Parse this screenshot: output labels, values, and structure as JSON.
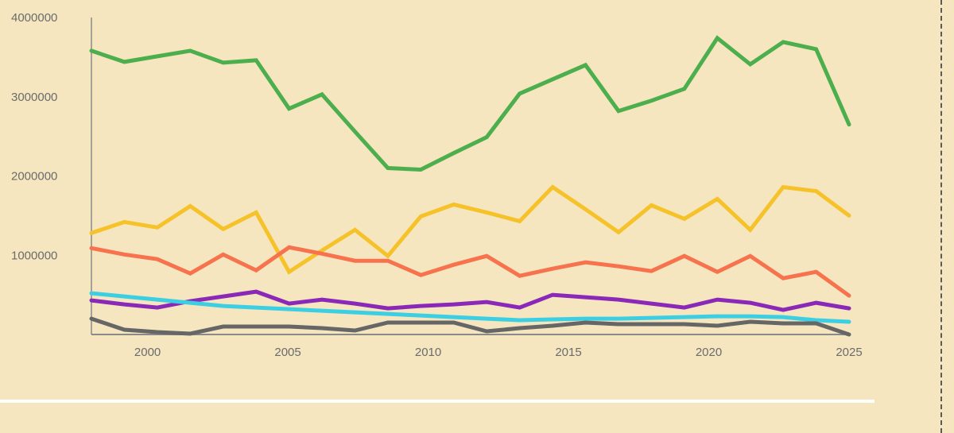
{
  "chart_data": {
    "type": "line",
    "title": "",
    "xlabel": "",
    "ylabel": "",
    "xlim": [
      1998,
      2025
    ],
    "ylim": [
      0,
      4000000
    ],
    "grid": false,
    "x_ticks": [
      "2000",
      "2005",
      "2010",
      "2015",
      "2020",
      "2025"
    ],
    "y_ticks": [
      "1000000",
      "2000000",
      "3000000",
      "4000000"
    ],
    "x": [
      1998,
      1999,
      2000,
      2001,
      2002,
      2003,
      2004,
      2005,
      2006,
      2007,
      2008,
      2009,
      2010,
      2011,
      2012,
      2013,
      2014,
      2015,
      2016,
      2017,
      2018,
      2019,
      2020,
      2021,
      2022,
      2023,
      2024,
      2025
    ],
    "series": [
      {
        "color": "#4cae4c",
        "values": [
          3580000,
          3440000,
          3510000,
          3580000,
          3430000,
          3460000,
          2850000,
          3030000,
          2560000,
          2100000,
          2080000,
          2290000,
          2490000,
          3040000,
          3220000,
          3400000,
          2820000,
          2950000,
          3100000,
          3740000,
          3410000,
          3690000,
          3600000,
          2650000,
          null,
          null,
          null,
          null
        ]
      },
      {
        "color": "#f6c22a",
        "values": [
          1280000,
          1420000,
          1350000,
          1620000,
          1330000,
          1540000,
          790000,
          1060000,
          1320000,
          990000,
          1490000,
          1640000,
          1540000,
          1430000,
          1860000,
          1580000,
          1290000,
          1630000,
          1460000,
          1710000,
          1320000,
          1860000,
          1810000,
          1500000,
          null,
          null,
          null,
          null
        ]
      },
      {
        "color": "#f7734d",
        "values": [
          1090000,
          1010000,
          950000,
          770000,
          1010000,
          810000,
          1100000,
          1020000,
          930000,
          930000,
          750000,
          880000,
          990000,
          740000,
          830000,
          910000,
          860000,
          800000,
          990000,
          790000,
          990000,
          710000,
          790000,
          490000,
          null,
          null,
          null,
          null
        ]
      },
      {
        "color": "#8a28b8",
        "values": [
          430000,
          380000,
          340000,
          420000,
          480000,
          540000,
          390000,
          440000,
          390000,
          330000,
          360000,
          380000,
          410000,
          340000,
          500000,
          470000,
          440000,
          390000,
          340000,
          440000,
          400000,
          310000,
          400000,
          330000,
          null,
          null,
          null,
          null
        ]
      },
      {
        "color": "#3ccfe3",
        "values": [
          520000,
          480000,
          440000,
          400000,
          360000,
          340000,
          320000,
          300000,
          280000,
          260000,
          240000,
          220000,
          200000,
          180000,
          190000,
          200000,
          200000,
          210000,
          220000,
          230000,
          230000,
          220000,
          180000,
          160000,
          null,
          null,
          null,
          null
        ]
      },
      {
        "color": "#666666",
        "values": [
          200000,
          60000,
          30000,
          10000,
          100000,
          100000,
          100000,
          80000,
          50000,
          150000,
          150000,
          150000,
          40000,
          80000,
          110000,
          150000,
          130000,
          130000,
          130000,
          110000,
          160000,
          140000,
          140000,
          0,
          null,
          null,
          null,
          null
        ]
      }
    ]
  }
}
